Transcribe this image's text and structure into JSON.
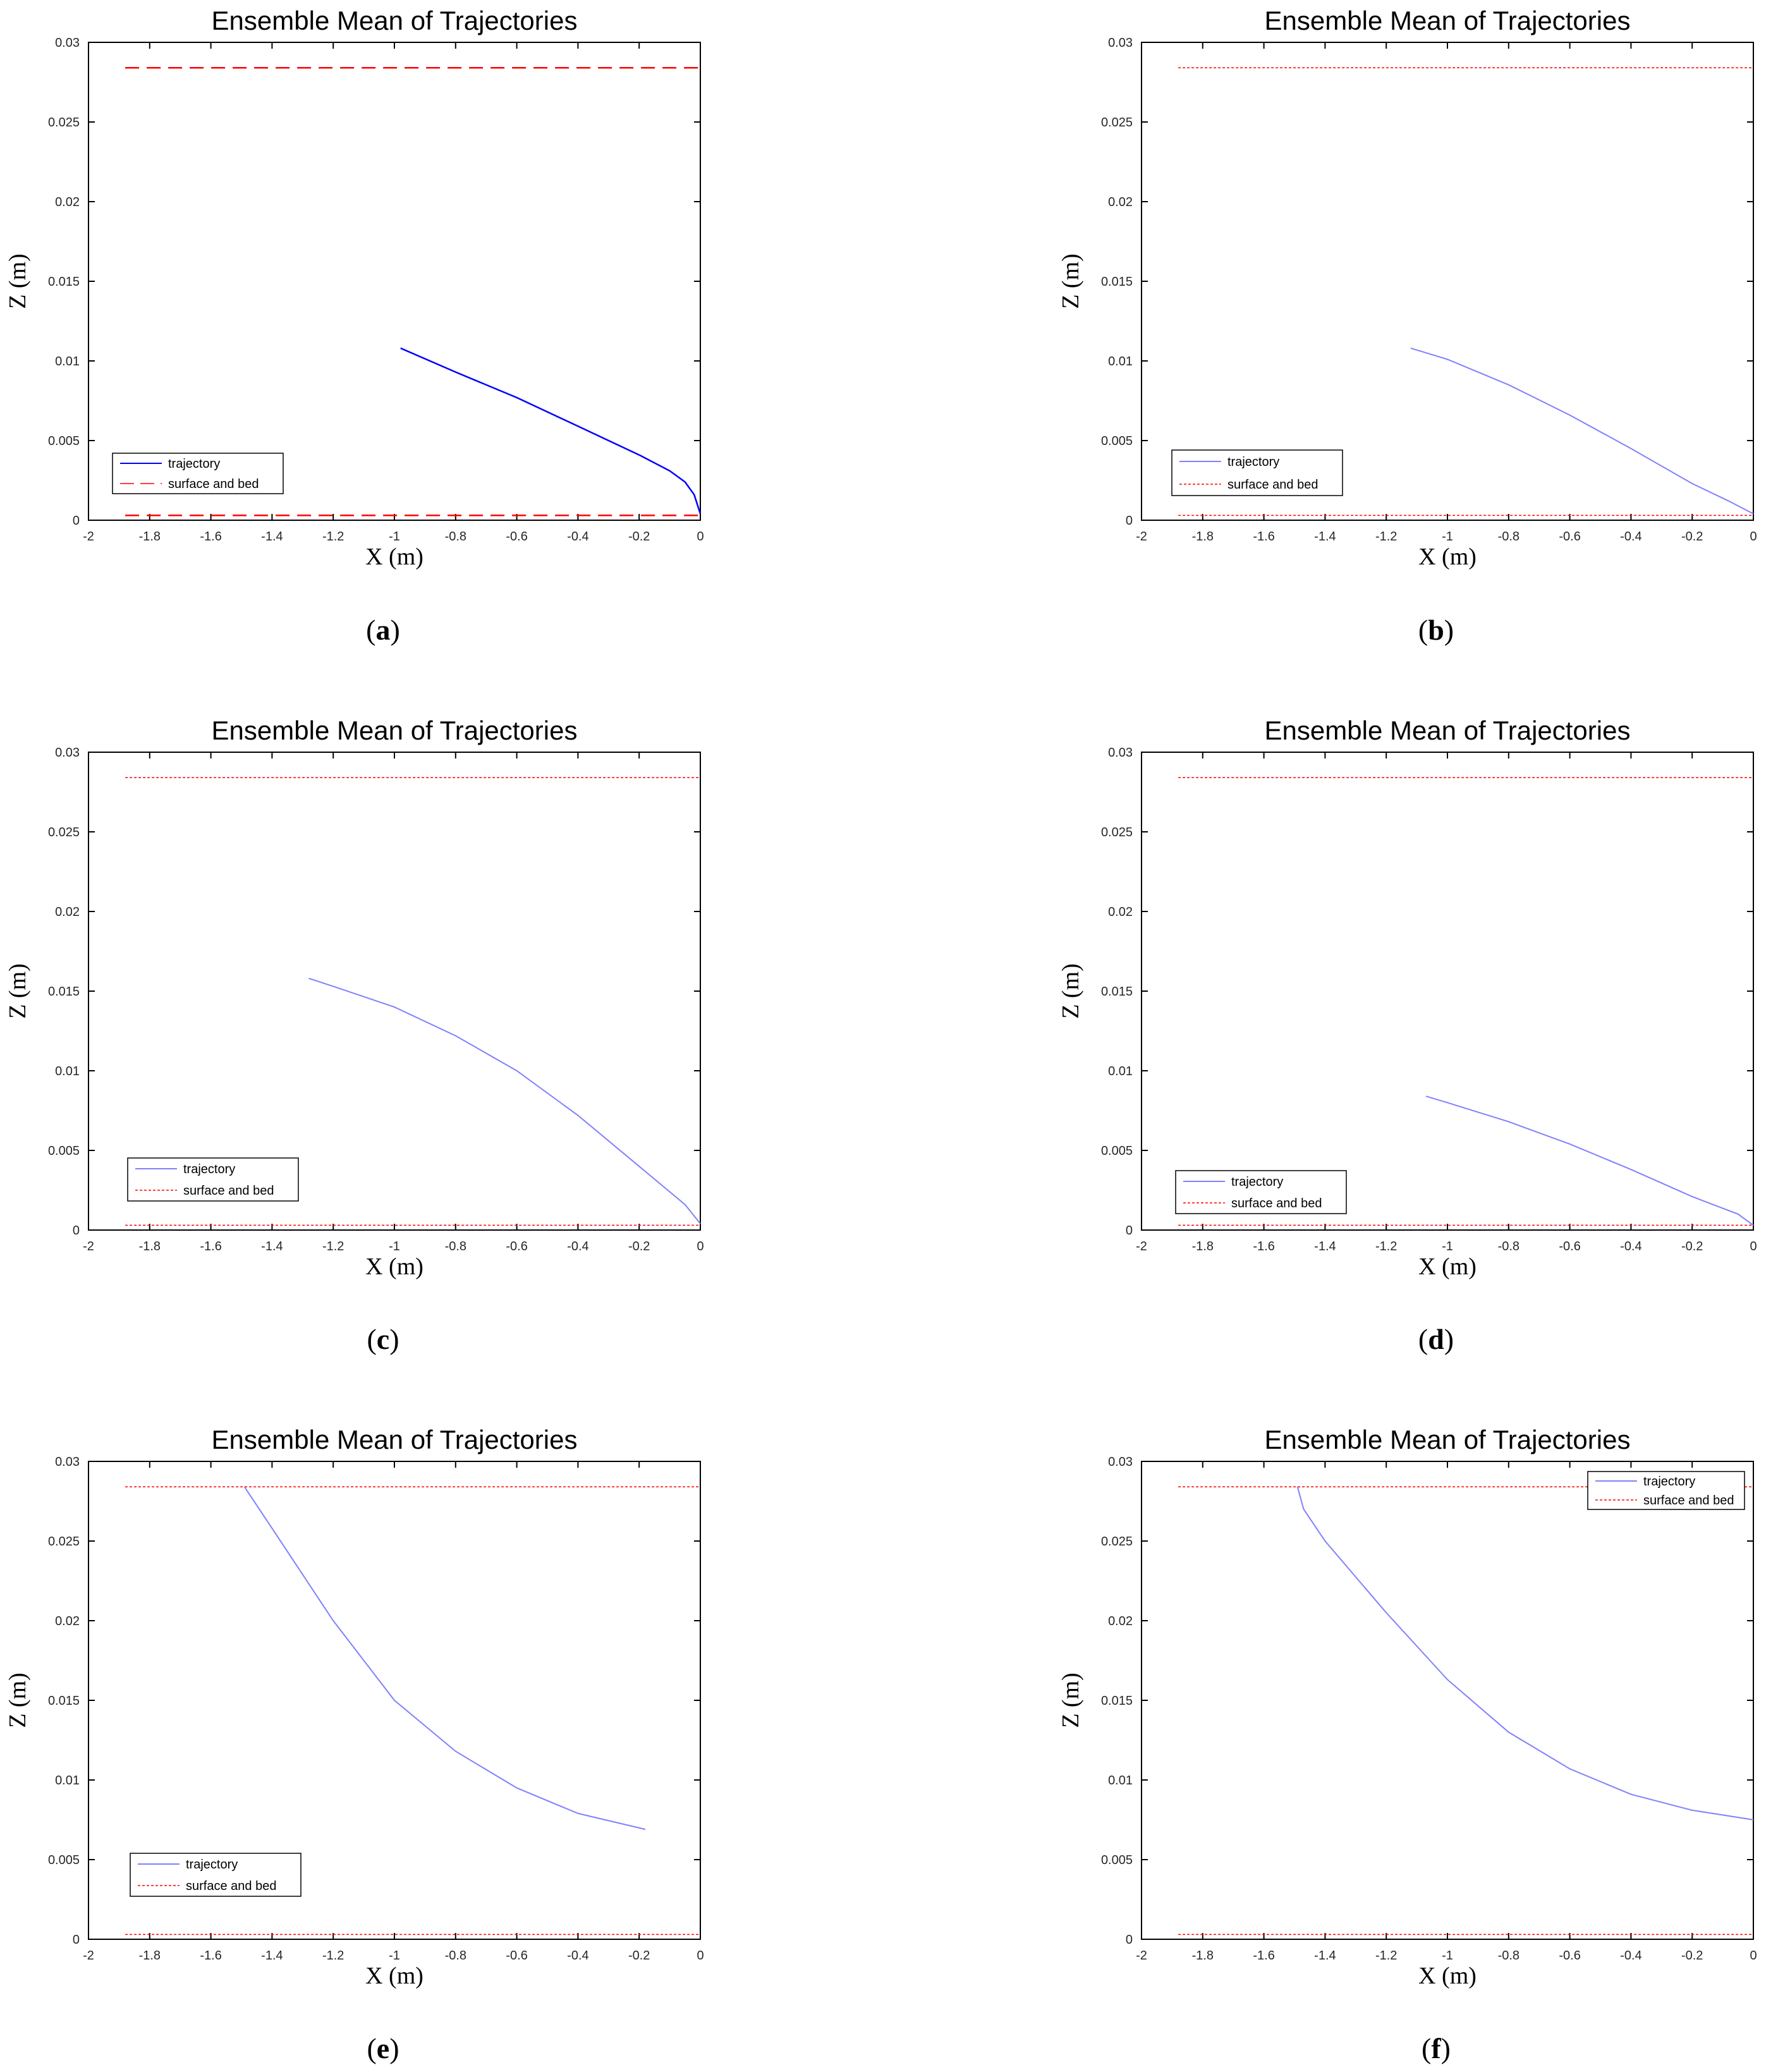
{
  "figure": {
    "panel_labels": [
      "(a)",
      "(b)",
      "(c)",
      "(d)",
      "(e)",
      "(f)"
    ]
  },
  "colors": {
    "trajectory_dark": "#0000ff",
    "trajectory_light": "#8080ff",
    "surface_bed": "#ff0000",
    "axis": "#000000",
    "tick_label": "#262626"
  },
  "chart_data": [
    {
      "panel": "(a)",
      "type": "line",
      "title": "Ensemble Mean of Trajectories",
      "xlabel": "X (m)",
      "ylabel": "Z (m)",
      "xlim": [
        -2,
        0
      ],
      "ylim": [
        0,
        0.03
      ],
      "xticks": [
        "-2",
        "-1.8",
        "-1.6",
        "-1.4",
        "-1.2",
        "-1",
        "-0.8",
        "-0.6",
        "-0.4",
        "-0.2",
        "0"
      ],
      "yticks": [
        "0",
        "0.005",
        "0.01",
        "0.015",
        "0.02",
        "0.025",
        "0.03"
      ],
      "legend": {
        "position": "bottom-left",
        "entries": [
          "trajectory",
          "surface and bed"
        ]
      },
      "series": [
        {
          "name": "trajectory",
          "style": "solid",
          "color": "#0000ff",
          "x": [
            -0.98,
            -0.8,
            -0.6,
            -0.4,
            -0.2,
            -0.1,
            -0.05,
            -0.02,
            0
          ],
          "y": [
            0.0108,
            0.0093,
            0.0077,
            0.0059,
            0.0041,
            0.0031,
            0.0024,
            0.0016,
            0.0004
          ]
        },
        {
          "name": "surface and bed",
          "style": "dashed",
          "color": "#ff0000",
          "x": [
            -1.88,
            0
          ],
          "y": [
            0.0284,
            0.0284
          ]
        },
        {
          "name": "bed",
          "style": "dashed",
          "color": "#ff0000",
          "x": [
            -1.88,
            0
          ],
          "y": [
            0.0003,
            0.0003
          ]
        }
      ]
    },
    {
      "panel": "(b)",
      "type": "line",
      "title": "Ensemble Mean of Trajectories",
      "xlabel": "X (m)",
      "ylabel": "Z (m)",
      "xlim": [
        -2,
        0
      ],
      "ylim": [
        0,
        0.03
      ],
      "xticks": [
        "-2",
        "-1.8",
        "-1.6",
        "-1.4",
        "-1.2",
        "-1",
        "-0.8",
        "-0.6",
        "-0.4",
        "-0.2",
        "0"
      ],
      "yticks": [
        "0",
        "0.005",
        "0.01",
        "0.015",
        "0.02",
        "0.025",
        "0.03"
      ],
      "legend": {
        "position": "bottom-left",
        "entries": [
          "trajectory",
          "surface and bed"
        ]
      },
      "series": [
        {
          "name": "trajectory",
          "style": "solid",
          "color": "#8080ff",
          "x": [
            -1.12,
            -1.0,
            -0.8,
            -0.6,
            -0.4,
            -0.2,
            -0.08,
            0
          ],
          "y": [
            0.0108,
            0.0101,
            0.0085,
            0.0066,
            0.0045,
            0.0023,
            0.0012,
            0.0004
          ]
        },
        {
          "name": "surface and bed",
          "style": "dotted",
          "color": "#ff0000",
          "x": [
            -1.88,
            0
          ],
          "y": [
            0.0284,
            0.0284
          ]
        },
        {
          "name": "bed",
          "style": "dotted",
          "color": "#ff0000",
          "x": [
            -1.88,
            0
          ],
          "y": [
            0.0003,
            0.0003
          ]
        }
      ]
    },
    {
      "panel": "(c)",
      "type": "line",
      "title": "Ensemble Mean of Trajectories",
      "xlabel": "X (m)",
      "ylabel": "Z (m)",
      "xlim": [
        -2,
        0
      ],
      "ylim": [
        0,
        0.03
      ],
      "xticks": [
        "-2",
        "-1.8",
        "-1.6",
        "-1.4",
        "-1.2",
        "-1",
        "-0.8",
        "-0.6",
        "-0.4",
        "-0.2",
        "0"
      ],
      "yticks": [
        "0",
        "0.005",
        "0.01",
        "0.015",
        "0.02",
        "0.025",
        "0.03"
      ],
      "legend": {
        "position": "bottom-left",
        "entries": [
          "trajectory",
          "surface and bed"
        ]
      },
      "series": [
        {
          "name": "trajectory",
          "style": "solid",
          "color": "#8080ff",
          "x": [
            -1.28,
            -1.2,
            -1.0,
            -0.8,
            -0.6,
            -0.4,
            -0.2,
            -0.05,
            0
          ],
          "y": [
            0.0158,
            0.0153,
            0.014,
            0.0122,
            0.01,
            0.0072,
            0.004,
            0.0016,
            0.0004
          ]
        },
        {
          "name": "surface and bed",
          "style": "dotted",
          "color": "#ff0000",
          "x": [
            -1.88,
            0
          ],
          "y": [
            0.0284,
            0.0284
          ]
        },
        {
          "name": "bed",
          "style": "dotted",
          "color": "#ff0000",
          "x": [
            -1.88,
            0
          ],
          "y": [
            0.0003,
            0.0003
          ]
        }
      ]
    },
    {
      "panel": "(d)",
      "type": "line",
      "title": "Ensemble Mean of Trajectories",
      "xlabel": "X (m)",
      "ylabel": "Z (m)",
      "xlim": [
        -2,
        0
      ],
      "ylim": [
        0,
        0.03
      ],
      "xticks": [
        "-2",
        "-1.8",
        "-1.6",
        "-1.4",
        "-1.2",
        "-1",
        "-0.8",
        "-0.6",
        "-0.4",
        "-0.2",
        "0"
      ],
      "yticks": [
        "0",
        "0.005",
        "0.01",
        "0.015",
        "0.02",
        "0.025",
        "0.03"
      ],
      "legend": {
        "position": "bottom-left",
        "entries": [
          "trajectory",
          "surface and bed"
        ]
      },
      "series": [
        {
          "name": "trajectory",
          "style": "solid",
          "color": "#8080ff",
          "x": [
            -1.07,
            -1.0,
            -0.8,
            -0.6,
            -0.4,
            -0.2,
            -0.05,
            0
          ],
          "y": [
            0.0084,
            0.008,
            0.0068,
            0.0054,
            0.0038,
            0.0021,
            0.001,
            0.0003
          ]
        },
        {
          "name": "surface and bed",
          "style": "dotted",
          "color": "#ff0000",
          "x": [
            -1.88,
            0
          ],
          "y": [
            0.0284,
            0.0284
          ]
        },
        {
          "name": "bed",
          "style": "dotted",
          "color": "#ff0000",
          "x": [
            -1.88,
            0
          ],
          "y": [
            0.0003,
            0.0003
          ]
        }
      ]
    },
    {
      "panel": "(e)",
      "type": "line",
      "title": "Ensemble Mean of Trajectories",
      "xlabel": "X (m)",
      "ylabel": "Z (m)",
      "xlim": [
        -2,
        0
      ],
      "ylim": [
        0,
        0.03
      ],
      "xticks": [
        "-2",
        "-1.8",
        "-1.6",
        "-1.4",
        "-1.2",
        "-1",
        "-0.8",
        "-0.6",
        "-0.4",
        "-0.2",
        "0"
      ],
      "yticks": [
        "0",
        "0.005",
        "0.01",
        "0.015",
        "0.02",
        "0.025",
        "0.03"
      ],
      "legend": {
        "position": "bottom-left",
        "entries": [
          "trajectory",
          "surface and bed"
        ]
      },
      "series": [
        {
          "name": "trajectory",
          "style": "solid",
          "color": "#8080ff",
          "x": [
            -1.49,
            -1.4,
            -1.2,
            -1.0,
            -0.8,
            -0.6,
            -0.4,
            -0.18
          ],
          "y": [
            0.0284,
            0.0258,
            0.02,
            0.015,
            0.0118,
            0.0095,
            0.0079,
            0.0069
          ]
        },
        {
          "name": "surface and bed",
          "style": "dotted",
          "color": "#ff0000",
          "x": [
            -1.88,
            0
          ],
          "y": [
            0.0284,
            0.0284
          ]
        },
        {
          "name": "bed",
          "style": "dotted",
          "color": "#ff0000",
          "x": [
            -1.88,
            0
          ],
          "y": [
            0.0003,
            0.0003
          ]
        }
      ]
    },
    {
      "panel": "(f)",
      "type": "line",
      "title": "Ensemble Mean of Trajectories",
      "xlabel": "X (m)",
      "ylabel": "Z (m)",
      "xlim": [
        -2,
        0
      ],
      "ylim": [
        0,
        0.03
      ],
      "xticks": [
        "-2",
        "-1.8",
        "-1.6",
        "-1.4",
        "-1.2",
        "-1",
        "-0.8",
        "-0.6",
        "-0.4",
        "-0.2",
        "0"
      ],
      "yticks": [
        "0",
        "0.005",
        "0.01",
        "0.015",
        "0.02",
        "0.025",
        "0.03"
      ],
      "legend": {
        "position": "top-right",
        "entries": [
          "trajectory",
          "surface and bed"
        ]
      },
      "series": [
        {
          "name": "trajectory",
          "style": "solid",
          "color": "#8080ff",
          "x": [
            -1.49,
            -1.47,
            -1.4,
            -1.2,
            -1.0,
            -0.8,
            -0.6,
            -0.4,
            -0.2,
            0
          ],
          "y": [
            0.0284,
            0.027,
            0.025,
            0.0205,
            0.0163,
            0.013,
            0.0107,
            0.0091,
            0.0081,
            0.0075
          ]
        },
        {
          "name": "surface and bed",
          "style": "dotted",
          "color": "#ff0000",
          "x": [
            -1.88,
            0
          ],
          "y": [
            0.0284,
            0.0284
          ]
        },
        {
          "name": "bed",
          "style": "dotted",
          "color": "#ff0000",
          "x": [
            -1.88,
            0
          ],
          "y": [
            0.0003,
            0.0003
          ]
        }
      ]
    }
  ]
}
